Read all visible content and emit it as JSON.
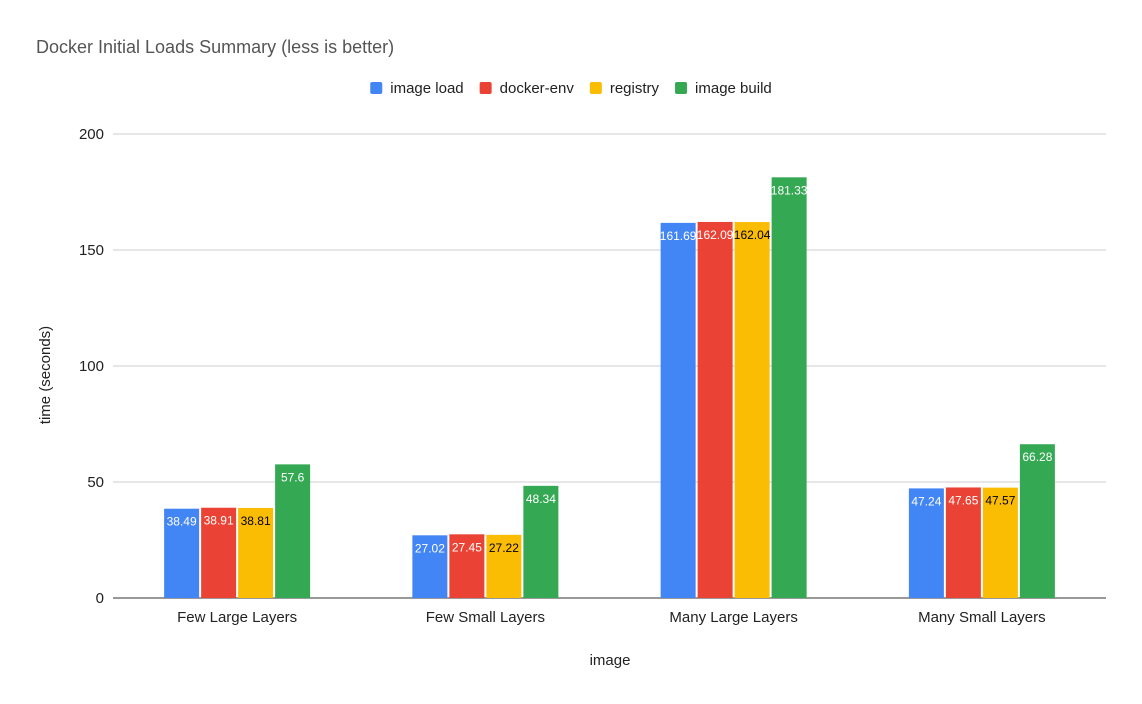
{
  "chart_data": {
    "type": "bar",
    "title": "Docker Initial Loads Summary (less is better)",
    "xlabel": "image",
    "ylabel": "time (seconds)",
    "categories": [
      "Few Large Layers",
      "Few Small Layers",
      "Many Large Layers",
      "Many Small Layers"
    ],
    "series": [
      {
        "name": "image load",
        "color": "#4285F4",
        "values": [
          38.49,
          27.02,
          161.69,
          47.24
        ]
      },
      {
        "name": "docker-env",
        "color": "#EA4335",
        "values": [
          38.91,
          27.45,
          162.09,
          47.65
        ]
      },
      {
        "name": "registry",
        "color": "#FBBC04",
        "values": [
          38.81,
          27.22,
          162.04,
          47.57
        ]
      },
      {
        "name": "image build",
        "color": "#34A853",
        "values": [
          57.6,
          48.34,
          181.33,
          66.28
        ]
      }
    ],
    "ylim": [
      0,
      200
    ],
    "yticks": [
      0,
      50,
      100,
      150,
      200
    ],
    "grid": true,
    "legend_position": "top-center"
  }
}
